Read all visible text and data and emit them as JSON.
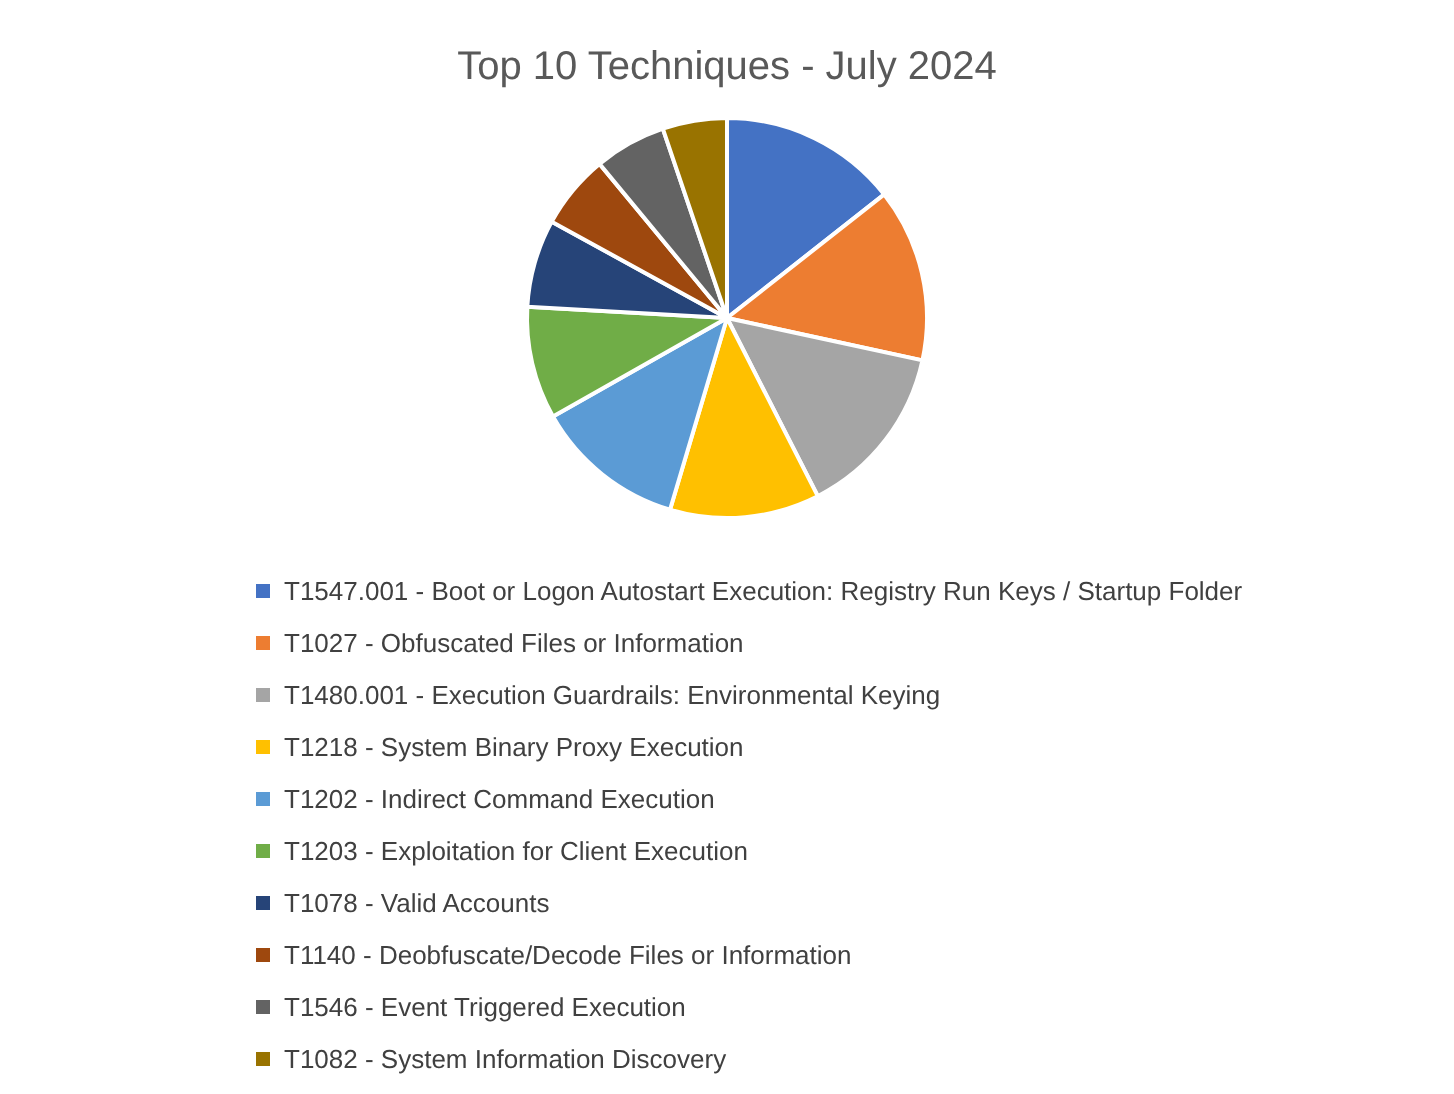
{
  "chart_data": {
    "type": "pie",
    "title": "Top 10 Techniques - July 2024",
    "categories": [
      "T1547.001 - Boot or Logon Autostart Execution: Registry Run Keys / Startup Folder",
      "T1027 - Obfuscated Files or Information",
      "T1480.001 - Execution Guardrails: Environmental Keying",
      "T1218 - System Binary Proxy Execution",
      "T1202 - Indirect Command Execution",
      "T1203 - Exploitation for Client Execution",
      "T1078 - Valid Accounts",
      "T1140 - Deobfuscate/Decode Files or Information",
      "T1546 - Event Triggered Execution",
      "T1082 - System Information Discovery"
    ],
    "values": [
      14.4,
      14.0,
      14.1,
      12.1,
      12.2,
      9.1,
      7.1,
      6.0,
      5.8,
      5.2
    ],
    "colors": [
      "#4472c4",
      "#ed7d31",
      "#a5a5a5",
      "#ffc000",
      "#5b9bd5",
      "#70ad47",
      "#264478",
      "#9e480e",
      "#636363",
      "#997300"
    ],
    "legend": "bottom"
  }
}
